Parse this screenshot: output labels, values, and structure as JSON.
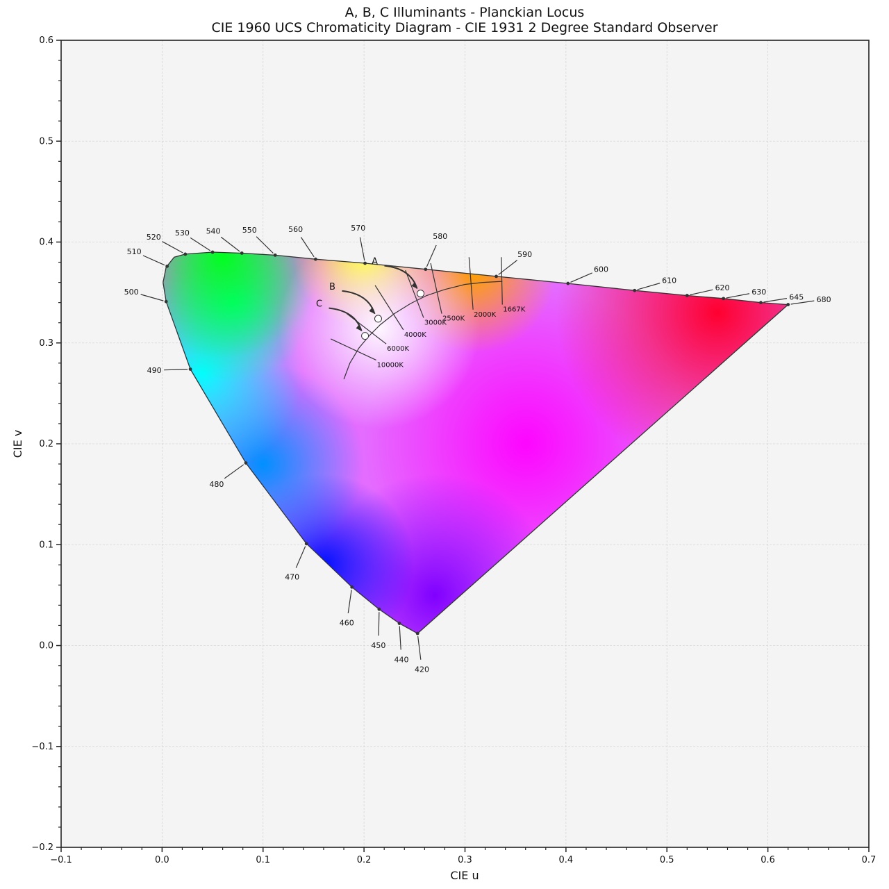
{
  "title": {
    "line1": "A, B, C Illuminants - Planckian Locus",
    "line2": "CIE 1960 UCS Chromaticity Diagram - CIE 1931 2 Degree Standard Observer"
  },
  "chart_data": {
    "type": "scatter",
    "xlabel": "CIE u",
    "ylabel": "CIE v",
    "xlim": [
      -0.1,
      0.7
    ],
    "ylim": [
      -0.2,
      0.6
    ],
    "grid": true,
    "x_ticks": [
      -0.1,
      0.0,
      0.1,
      0.2,
      0.3,
      0.4,
      0.5,
      0.6,
      0.7
    ],
    "y_ticks": [
      -0.2,
      -0.1,
      0.0,
      0.1,
      0.2,
      0.3,
      0.4,
      0.5,
      0.6
    ],
    "x_tick_labels": [
      "−0.1",
      "0.0",
      "0.1",
      "0.2",
      "0.3",
      "0.4",
      "0.5",
      "0.6",
      "0.7"
    ],
    "y_tick_labels": [
      "−0.2",
      "−0.1",
      "0.0",
      "0.1",
      "0.2",
      "0.3",
      "0.4",
      "0.5",
      "0.6"
    ],
    "spectral_locus": [
      [
        0.253,
        0.012
      ],
      [
        0.235,
        0.022
      ],
      [
        0.215,
        0.036
      ],
      [
        0.188,
        0.058
      ],
      [
        0.143,
        0.101
      ],
      [
        0.083,
        0.181
      ],
      [
        0.028,
        0.274
      ],
      [
        0.004,
        0.341
      ],
      [
        0.001,
        0.36
      ],
      [
        0.004,
        0.375
      ],
      [
        0.012,
        0.385
      ],
      [
        0.023,
        0.388
      ],
      [
        0.05,
        0.39
      ],
      [
        0.079,
        0.389
      ],
      [
        0.112,
        0.387
      ],
      [
        0.152,
        0.383
      ],
      [
        0.201,
        0.379
      ],
      [
        0.261,
        0.373
      ],
      [
        0.331,
        0.366
      ],
      [
        0.402,
        0.359
      ],
      [
        0.468,
        0.352
      ],
      [
        0.52,
        0.347
      ],
      [
        0.556,
        0.344
      ],
      [
        0.593,
        0.34
      ],
      [
        0.62,
        0.338
      ]
    ],
    "wavelength_markers": [
      {
        "label": "420",
        "u": 0.253,
        "v": 0.012
      },
      {
        "label": "440",
        "u": 0.235,
        "v": 0.022
      },
      {
        "label": "450",
        "u": 0.215,
        "v": 0.036
      },
      {
        "label": "460",
        "u": 0.188,
        "v": 0.058
      },
      {
        "label": "470",
        "u": 0.143,
        "v": 0.101
      },
      {
        "label": "480",
        "u": 0.083,
        "v": 0.181
      },
      {
        "label": "490",
        "u": 0.028,
        "v": 0.274
      },
      {
        "label": "500",
        "u": 0.004,
        "v": 0.341
      },
      {
        "label": "510",
        "u": 0.005,
        "v": 0.376
      },
      {
        "label": "520",
        "u": 0.023,
        "v": 0.388
      },
      {
        "label": "530",
        "u": 0.05,
        "v": 0.39
      },
      {
        "label": "540",
        "u": 0.079,
        "v": 0.389
      },
      {
        "label": "550",
        "u": 0.112,
        "v": 0.387
      },
      {
        "label": "560",
        "u": 0.152,
        "v": 0.383
      },
      {
        "label": "570",
        "u": 0.201,
        "v": 0.379
      },
      {
        "label": "580",
        "u": 0.261,
        "v": 0.373
      },
      {
        "label": "590",
        "u": 0.331,
        "v": 0.366
      },
      {
        "label": "600",
        "u": 0.402,
        "v": 0.359
      },
      {
        "label": "610",
        "u": 0.468,
        "v": 0.352
      },
      {
        "label": "620",
        "u": 0.52,
        "v": 0.347
      },
      {
        "label": "630",
        "u": 0.556,
        "v": 0.344
      },
      {
        "label": "645",
        "u": 0.593,
        "v": 0.34
      },
      {
        "label": "680",
        "u": 0.62,
        "v": 0.338
      }
    ],
    "planckian_locus": [
      [
        0.18,
        0.264
      ],
      [
        0.186,
        0.28
      ],
      [
        0.195,
        0.295
      ],
      [
        0.205,
        0.307
      ],
      [
        0.216,
        0.318
      ],
      [
        0.23,
        0.329
      ],
      [
        0.246,
        0.339
      ],
      [
        0.262,
        0.347
      ],
      [
        0.28,
        0.353
      ],
      [
        0.3,
        0.358
      ],
      [
        0.318,
        0.36
      ],
      [
        0.337,
        0.361
      ]
    ],
    "isotemperature_lines": [
      {
        "label": "1667K",
        "from": [
          0.336,
          0.385
        ],
        "to": [
          0.337,
          0.338
        ]
      },
      {
        "label": "2000K",
        "from": [
          0.304,
          0.385
        ],
        "to": [
          0.308,
          0.333
        ]
      },
      {
        "label": "2500K",
        "from": [
          0.266,
          0.379
        ],
        "to": [
          0.277,
          0.329
        ]
      },
      {
        "label": "3000K",
        "from": [
          0.241,
          0.372
        ],
        "to": [
          0.259,
          0.325
        ]
      },
      {
        "label": "4000K",
        "from": [
          0.211,
          0.357
        ],
        "to": [
          0.239,
          0.313
        ]
      },
      {
        "label": "6000K",
        "from": [
          0.183,
          0.329
        ],
        "to": [
          0.222,
          0.299
        ]
      },
      {
        "label": "10000K",
        "from": [
          0.167,
          0.304
        ],
        "to": [
          0.212,
          0.283
        ]
      }
    ],
    "illuminants": [
      {
        "name": "A",
        "u": 0.256,
        "v": 0.349
      },
      {
        "name": "B",
        "u": 0.214,
        "v": 0.324
      },
      {
        "name": "C",
        "u": 0.201,
        "v": 0.307
      }
    ]
  }
}
